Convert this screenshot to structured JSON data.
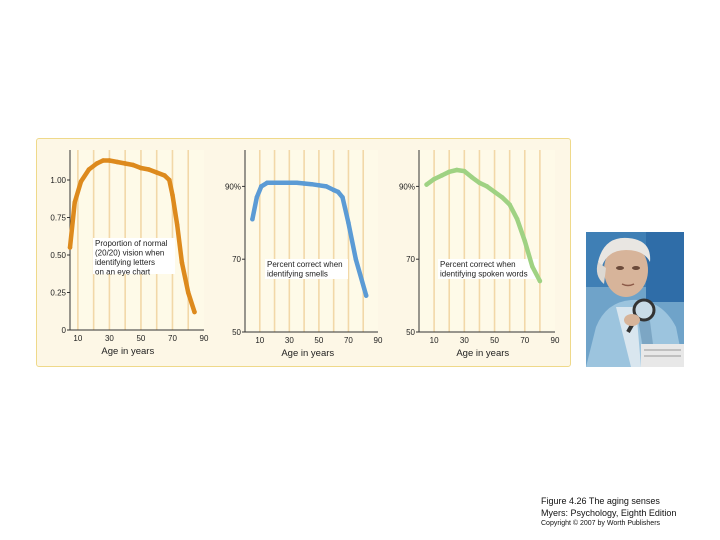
{
  "figure": {
    "caption_title": "Figure 4.26 The aging senses",
    "caption_source": "Myers: Psychology, Eighth Edition",
    "caption_copyright": "Copyright © 2007 by Worth Publishers",
    "panel_bg": "#fdf7e6",
    "panel_border": "#efd98a",
    "grid_color": "#f2d8a8",
    "photo": "elderly woman examining a document with a magnifying glass"
  },
  "chart_data": [
    {
      "type": "line",
      "xlabel": "Age in years",
      "ylabel": "",
      "xlim": [
        5,
        90
      ],
      "ylim": [
        0,
        1.2
      ],
      "xticks": [
        10,
        30,
        50,
        70,
        90
      ],
      "xtick_labels": [
        "10",
        "30",
        "50",
        "70",
        "90"
      ],
      "yticks": [
        0,
        0.25,
        0.5,
        0.75,
        1.0
      ],
      "ytick_labels": [
        "0",
        "0.25",
        "0.50",
        "0.75",
        "1.00"
      ],
      "annotation": [
        "Proportion of normal",
        "(20/20) vision when",
        "identifying letters",
        "on an eye chart"
      ],
      "color": "#dd8a1d",
      "x": [
        5,
        8,
        12,
        17,
        22,
        26,
        30,
        35,
        40,
        45,
        50,
        55,
        60,
        65,
        68,
        70,
        73,
        76,
        80,
        84
      ],
      "y": [
        0.55,
        0.85,
        0.99,
        1.07,
        1.11,
        1.13,
        1.13,
        1.12,
        1.11,
        1.1,
        1.08,
        1.07,
        1.05,
        1.03,
        1.0,
        0.9,
        0.7,
        0.45,
        0.25,
        0.12
      ]
    },
    {
      "type": "line",
      "xlabel": "Age in years",
      "ylabel": "",
      "xlim": [
        0,
        90
      ],
      "ylim": [
        50,
        100
      ],
      "xticks": [
        10,
        30,
        50,
        70,
        90
      ],
      "xtick_labels": [
        "10",
        "30",
        "50",
        "70",
        "90"
      ],
      "yticks": [
        50,
        70,
        90
      ],
      "ytick_labels": [
        "50",
        "70",
        "90%"
      ],
      "annotation": [
        "Percent correct when",
        "identifying smells"
      ],
      "color": "#5b9bd5",
      "x": [
        5,
        8,
        11,
        15,
        20,
        25,
        30,
        35,
        40,
        45,
        50,
        55,
        60,
        63,
        66,
        70,
        75,
        82
      ],
      "y": [
        81,
        87,
        90,
        91,
        91,
        91,
        91,
        91,
        90.8,
        90.6,
        90.3,
        90,
        89,
        88.5,
        87,
        80,
        70,
        60
      ]
    },
    {
      "type": "line",
      "xlabel": "Age in years",
      "ylabel": "",
      "xlim": [
        0,
        90
      ],
      "ylim": [
        50,
        100
      ],
      "xticks": [
        10,
        30,
        50,
        70,
        90
      ],
      "xtick_labels": [
        "10",
        "30",
        "50",
        "70",
        "90"
      ],
      "yticks": [
        50,
        70,
        90
      ],
      "ytick_labels": [
        "50",
        "70",
        "90%"
      ],
      "annotation": [
        "Percent correct when",
        "identifying spoken words"
      ],
      "color": "#9fd283",
      "x": [
        5,
        10,
        15,
        20,
        25,
        30,
        35,
        40,
        45,
        50,
        55,
        60,
        65,
        70,
        75,
        80
      ],
      "y": [
        90.5,
        92,
        93,
        94,
        94.5,
        94.2,
        92.5,
        91,
        90,
        88.5,
        87,
        85,
        81,
        75,
        68,
        64
      ]
    }
  ]
}
